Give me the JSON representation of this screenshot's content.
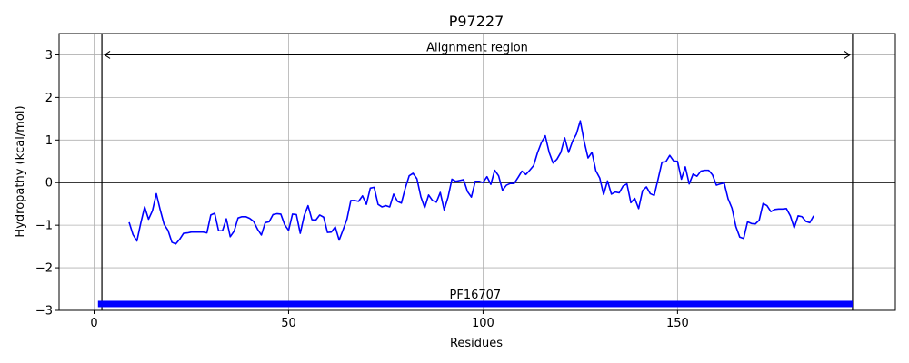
{
  "chart_data": {
    "type": "line",
    "title": "P97227",
    "xlabel": "Residues",
    "ylabel": "Hydropathy (kcal/mol)",
    "xlim": [
      -9,
      206
    ],
    "ylim": [
      -3,
      3.5
    ],
    "x_ticks": [
      0,
      50,
      100,
      150
    ],
    "y_ticks": [
      -3,
      -2,
      -1,
      0,
      1,
      2,
      3
    ],
    "grid": true,
    "series": [
      {
        "color": "#0000ff",
        "x": [
          9,
          10,
          11,
          12,
          13,
          14,
          15,
          16,
          17,
          18,
          19,
          20,
          21,
          22,
          23,
          24,
          25,
          26,
          27,
          28,
          29,
          30,
          31,
          32,
          33,
          34,
          35,
          36,
          37,
          38,
          39,
          40,
          41,
          42,
          43,
          44,
          45,
          46,
          47,
          48,
          49,
          50,
          51,
          52,
          53,
          54,
          55,
          56,
          57,
          58,
          59,
          60,
          61,
          62,
          63,
          64,
          65,
          66,
          67,
          68,
          69,
          70,
          71,
          72,
          73,
          74,
          75,
          76,
          77,
          78,
          79,
          80,
          81,
          82,
          83,
          84,
          85,
          86,
          87,
          88,
          89,
          90,
          91,
          92,
          93,
          94,
          95,
          96,
          97,
          98,
          99,
          100,
          101,
          102,
          103,
          104,
          105,
          106,
          107,
          108,
          109,
          110,
          111,
          112,
          113,
          114,
          115,
          116,
          117,
          118,
          119,
          120,
          121,
          122,
          123,
          124,
          125,
          126,
          127,
          128,
          129,
          130,
          131,
          132,
          133,
          134,
          135,
          136,
          137,
          138,
          139,
          140,
          141,
          142,
          143,
          144,
          145,
          146,
          147,
          148,
          149,
          150,
          151,
          152,
          153,
          154,
          155,
          156,
          157,
          158,
          159,
          160,
          161,
          162,
          163,
          164,
          165,
          166,
          167,
          168,
          169,
          170,
          171,
          172,
          173,
          174,
          175,
          176,
          177,
          178,
          179,
          180,
          181,
          182,
          183,
          184,
          185
        ],
        "y": [
          -0.93,
          -1.22,
          -1.37,
          -0.95,
          -0.57,
          -0.86,
          -0.66,
          -0.26,
          -0.64,
          -0.98,
          -1.12,
          -1.4,
          -1.44,
          -1.33,
          -1.19,
          -1.18,
          -1.16,
          -1.16,
          -1.16,
          -1.16,
          -1.18,
          -0.76,
          -0.72,
          -1.13,
          -1.13,
          -0.85,
          -1.27,
          -1.14,
          -0.83,
          -0.8,
          -0.8,
          -0.84,
          -0.91,
          -1.09,
          -1.23,
          -0.94,
          -0.92,
          -0.75,
          -0.73,
          -0.74,
          -0.99,
          -1.12,
          -0.74,
          -0.75,
          -1.19,
          -0.78,
          -0.54,
          -0.87,
          -0.88,
          -0.76,
          -0.81,
          -1.17,
          -1.16,
          -1.04,
          -1.35,
          -1.11,
          -0.86,
          -0.42,
          -0.42,
          -0.44,
          -0.31,
          -0.51,
          -0.13,
          -0.11,
          -0.51,
          -0.57,
          -0.54,
          -0.57,
          -0.27,
          -0.44,
          -0.48,
          -0.13,
          0.16,
          0.22,
          0.09,
          -0.33,
          -0.59,
          -0.29,
          -0.42,
          -0.46,
          -0.23,
          -0.64,
          -0.34,
          0.08,
          0.03,
          0.05,
          0.07,
          -0.21,
          -0.34,
          0.03,
          0.03,
          0.0,
          0.14,
          -0.04,
          0.29,
          0.16,
          -0.18,
          -0.06,
          -0.02,
          -0.02,
          0.12,
          0.27,
          0.19,
          0.29,
          0.4,
          0.7,
          0.94,
          1.1,
          0.71,
          0.46,
          0.55,
          0.71,
          1.05,
          0.71,
          0.97,
          1.14,
          1.45,
          0.97,
          0.58,
          0.71,
          0.28,
          0.11,
          -0.28,
          0.04,
          -0.27,
          -0.22,
          -0.24,
          -0.08,
          -0.03,
          -0.47,
          -0.37,
          -0.61,
          -0.19,
          -0.1,
          -0.26,
          -0.3,
          0.08,
          0.48,
          0.49,
          0.64,
          0.51,
          0.5,
          0.08,
          0.37,
          -0.03,
          0.2,
          0.15,
          0.27,
          0.29,
          0.29,
          0.18,
          -0.06,
          -0.03,
          -0.01,
          -0.38,
          -0.6,
          -1.03,
          -1.28,
          -1.31,
          -0.92,
          -0.96,
          -0.97,
          -0.88,
          -0.49,
          -0.54,
          -0.68,
          -0.63,
          -0.62,
          -0.62,
          -0.61,
          -0.78,
          -1.06,
          -0.78,
          -0.8,
          -0.91,
          -0.94,
          -0.78
        ]
      }
    ],
    "reference_lines": {
      "horizontal_zero": 0,
      "vertical": [
        2,
        195
      ]
    },
    "annotations": [
      {
        "text": "Alignment region",
        "x_start": 2,
        "x_end": 195,
        "y": 3
      }
    ],
    "domains": [
      {
        "label": "PF16707",
        "start": 1,
        "end": 195,
        "y": -2.85,
        "color": "#0000ff"
      }
    ]
  }
}
